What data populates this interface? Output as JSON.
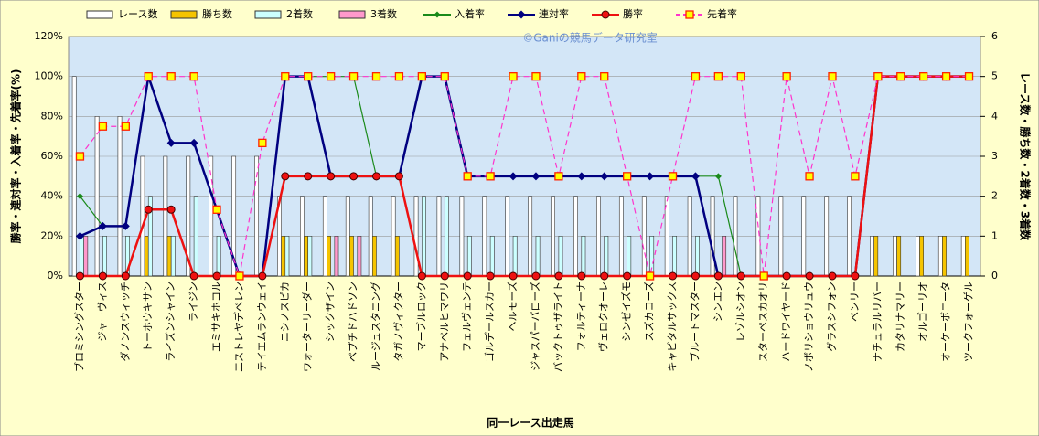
{
  "chart_data": {
    "type": "combo",
    "watermark": "©Ganiの競馬データ研究室",
    "x_label": "同一レース出走馬",
    "y_label": "勝率・連対率・入着率・先着率(%)",
    "y2_label": "レース数・勝ち数・2着数・3着数",
    "categories": [
      "ブロミシングスター",
      "ジャーヴィス",
      "ダノンスウィッチ",
      "トーホウキサン",
      "ライズンシャイン",
      "ライジン",
      "エミサキホコル",
      "エストレヤデベレン",
      "テイエムランウェイ",
      "ニシノスピカ",
      "ウォーターリーダー",
      "シックザイン",
      "ベプチドハドソン",
      "ルージュスタニング",
      "タガノヴィクター",
      "マーブルロック",
      "アナベルヒマワリ",
      "フェルヴェンテ",
      "ゴルデールスカー",
      "ヘルモーズ",
      "ジャスパーバローズ",
      "バックトゥザライト",
      "フォルティーナ",
      "ヴェロクオーレ",
      "シンゼイズモ",
      "スズカコーズ",
      "キャピタルサックス",
      "ブルートマスター",
      "シンエン",
      "レゾルシオン",
      "スターペスカオリ",
      "ハードワイヤード",
      "ノボリショウリュウ",
      "グラスシフォン",
      "ベンリー",
      "ナチュラルリバー",
      "カタリナマリー",
      "オルゴーリオ",
      "オーケーボニータ",
      "ツークフォーゲル"
    ],
    "ylim": [
      0,
      120
    ],
    "yticks": [
      {
        "value": 0,
        "label": "0%"
      },
      {
        "value": 20,
        "label": "20%"
      },
      {
        "value": 40,
        "label": "40%"
      },
      {
        "value": 60,
        "label": "60%"
      },
      {
        "value": 80,
        "label": "80%"
      },
      {
        "value": 100,
        "label": "100%"
      },
      {
        "value": 120,
        "label": "120%"
      }
    ],
    "y2lim": [
      0,
      6
    ],
    "y2ticks": [
      0,
      1,
      2,
      3,
      4,
      5,
      6
    ],
    "grid": true,
    "series": [
      {
        "name": "レース数",
        "kind": "bar",
        "axis": "y2",
        "color": "#ffffff",
        "values": [
          5,
          4,
          4,
          3,
          3,
          3,
          3,
          3,
          3,
          2,
          2,
          2,
          2,
          2,
          2,
          2,
          2,
          2,
          2,
          2,
          2,
          2,
          2,
          2,
          2,
          2,
          2,
          2,
          2,
          2,
          2,
          2,
          2,
          2,
          2,
          1,
          1,
          1,
          1,
          1
        ]
      },
      {
        "name": "勝ち数",
        "kind": "bar",
        "axis": "y2",
        "color": "#f5c400",
        "values": [
          0,
          0,
          0,
          1,
          1,
          0,
          0,
          0,
          0,
          1,
          1,
          1,
          1,
          1,
          1,
          0,
          0,
          0,
          0,
          0,
          0,
          0,
          0,
          0,
          0,
          0,
          0,
          0,
          0,
          0,
          0,
          0,
          0,
          0,
          0,
          1,
          1,
          1,
          1,
          1
        ]
      },
      {
        "name": "2着数",
        "kind": "bar",
        "axis": "y2",
        "color": "#ccffff",
        "values": [
          1,
          1,
          1,
          2,
          1,
          2,
          1,
          0,
          0,
          1,
          1,
          0,
          0,
          0,
          0,
          2,
          2,
          1,
          1,
          1,
          1,
          1,
          1,
          1,
          1,
          1,
          1,
          1,
          0,
          0,
          0,
          0,
          0,
          0,
          0,
          0,
          0,
          0,
          0,
          0
        ]
      },
      {
        "name": "3着数",
        "kind": "bar",
        "axis": "y2",
        "color": "#ff99cc",
        "values": [
          1,
          0,
          0,
          0,
          0,
          0,
          0,
          0,
          0,
          0,
          0,
          1,
          1,
          0,
          0,
          0,
          0,
          0,
          0,
          0,
          0,
          0,
          0,
          0,
          0,
          0,
          0,
          0,
          1,
          0,
          0,
          0,
          0,
          0,
          0,
          0,
          0,
          0,
          0,
          0
        ]
      },
      {
        "name": "入着率",
        "kind": "line",
        "color": "#1a8a1a",
        "marker": "diamond",
        "values": [
          40,
          25,
          25,
          100,
          66.7,
          66.7,
          33.3,
          0,
          0,
          100,
          100,
          100,
          100,
          50,
          50,
          100,
          100,
          50,
          50,
          50,
          50,
          50,
          50,
          50,
          50,
          50,
          50,
          50,
          50,
          0,
          0,
          0,
          0,
          0,
          0,
          100,
          100,
          100,
          100,
          100
        ]
      },
      {
        "name": "連対率",
        "kind": "line",
        "color": "#000080",
        "marker": "diamond",
        "values": [
          20,
          25,
          25,
          100,
          66.7,
          66.7,
          33.3,
          0,
          0,
          100,
          100,
          50,
          50,
          50,
          50,
          100,
          100,
          50,
          50,
          50,
          50,
          50,
          50,
          50,
          50,
          50,
          50,
          50,
          0,
          0,
          0,
          0,
          0,
          0,
          0,
          100,
          100,
          100,
          100,
          100
        ]
      },
      {
        "name": "勝率",
        "kind": "line",
        "color": "#ee1111",
        "marker": "circle",
        "values": [
          0,
          0,
          0,
          33.3,
          33.3,
          0,
          0,
          0,
          0,
          50,
          50,
          50,
          50,
          50,
          50,
          0,
          0,
          0,
          0,
          0,
          0,
          0,
          0,
          0,
          0,
          0,
          0,
          0,
          0,
          0,
          0,
          0,
          0,
          0,
          0,
          100,
          100,
          100,
          100,
          100
        ]
      },
      {
        "name": "先着率",
        "kind": "line",
        "color": "#ff33cc",
        "marker": "square",
        "dashed": true,
        "values": [
          60,
          75,
          75,
          100,
          100,
          100,
          33.3,
          0,
          66.7,
          100,
          100,
          100,
          100,
          100,
          100,
          100,
          100,
          50,
          50,
          100,
          100,
          50,
          100,
          100,
          50,
          0,
          50,
          100,
          100,
          100,
          0,
          100,
          50,
          100,
          50,
          100,
          100,
          100,
          100,
          100
        ]
      }
    ]
  }
}
